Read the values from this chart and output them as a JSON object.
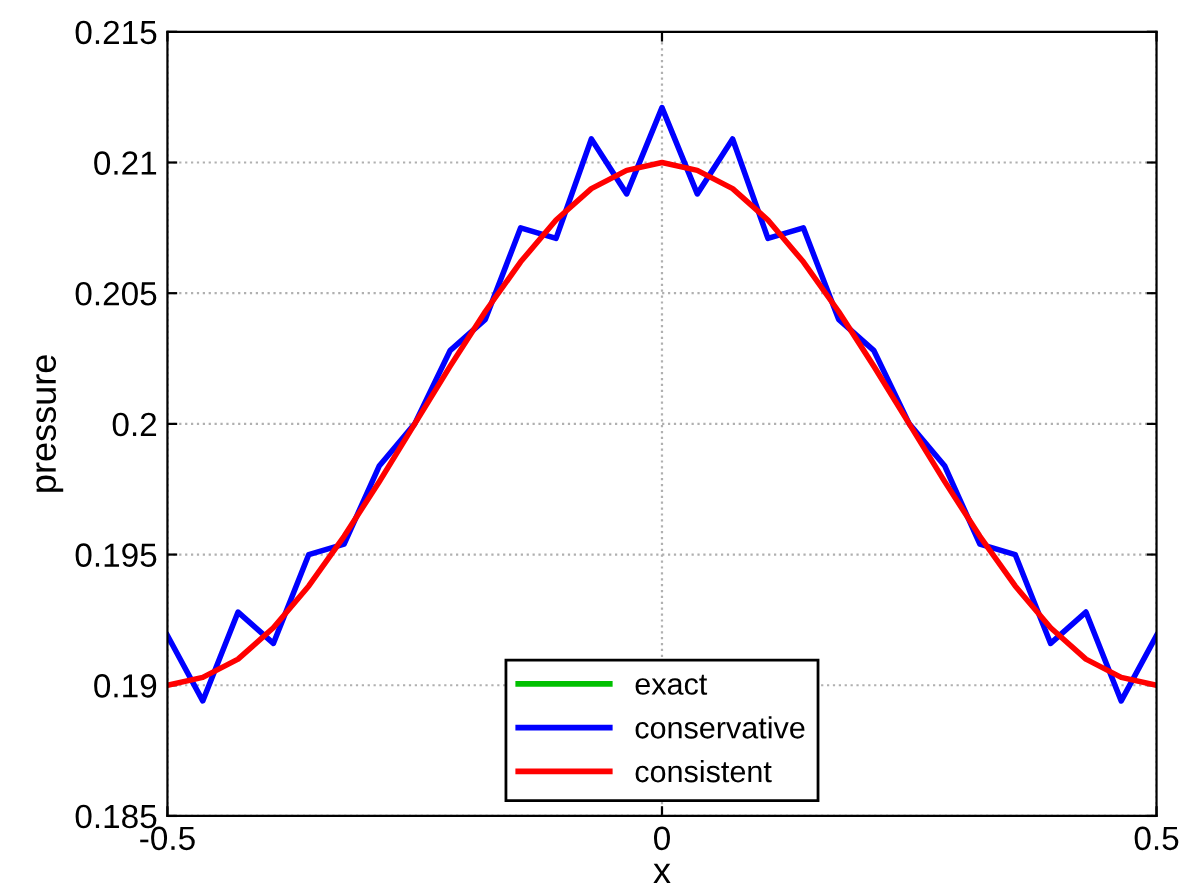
{
  "chart_data": {
    "type": "line",
    "xlabel": "x",
    "ylabel": "pressure",
    "x": [
      -0.5,
      -0.4643,
      -0.4286,
      -0.3929,
      -0.3571,
      -0.3214,
      -0.2857,
      -0.25,
      -0.2143,
      -0.1786,
      -0.1429,
      -0.1071,
      -0.0714,
      -0.0357,
      0,
      0.0357,
      0.0714,
      0.1071,
      0.1429,
      0.1786,
      0.2143,
      0.25,
      0.2857,
      0.3214,
      0.3571,
      0.3929,
      0.4286,
      0.4643,
      0.5
    ],
    "series": [
      {
        "name": "exact",
        "color": "#00c000",
        "values": [
          null,
          null,
          null,
          null,
          null,
          null,
          null,
          null,
          null,
          null,
          null,
          null,
          null,
          null,
          null,
          null,
          null,
          null,
          null,
          null,
          null,
          null,
          null,
          null,
          null,
          null,
          null,
          null,
          null
        ]
      },
      {
        "name": "conservative",
        "color": "#0000ff",
        "values": [
          0.1919,
          0.1894,
          0.1928,
          0.1916,
          0.195,
          0.1954,
          0.1984,
          0.2,
          0.2028,
          0.204,
          0.2075,
          0.2071,
          0.2109,
          0.2088,
          0.2121,
          0.2088,
          0.2109,
          0.2071,
          0.2075,
          0.204,
          0.2028,
          0.2,
          0.1984,
          0.1954,
          0.195,
          0.1916,
          0.1928,
          0.1894,
          0.1919
        ]
      },
      {
        "name": "consistent",
        "color": "#ff0000",
        "values": [
          0.19,
          0.1903,
          0.191,
          0.1922,
          0.1938,
          0.1957,
          0.1978,
          0.2,
          0.2022,
          0.2043,
          0.2062,
          0.2078,
          0.209,
          0.2097,
          0.21,
          0.2097,
          0.209,
          0.2078,
          0.2062,
          0.2043,
          0.2022,
          0.2,
          0.1978,
          0.1957,
          0.1938,
          0.1922,
          0.191,
          0.1903,
          0.19
        ]
      }
    ],
    "xlim": [
      -0.5,
      0.5
    ],
    "xticks": [
      -0.5,
      0,
      0.5
    ],
    "ylim": [
      0.185,
      0.215
    ],
    "yticks": [
      0.185,
      0.19,
      0.195,
      0.2,
      0.205,
      0.21,
      0.215
    ],
    "grid": true,
    "legend": "bottom",
    "line_style": "solid",
    "marker": "none"
  }
}
